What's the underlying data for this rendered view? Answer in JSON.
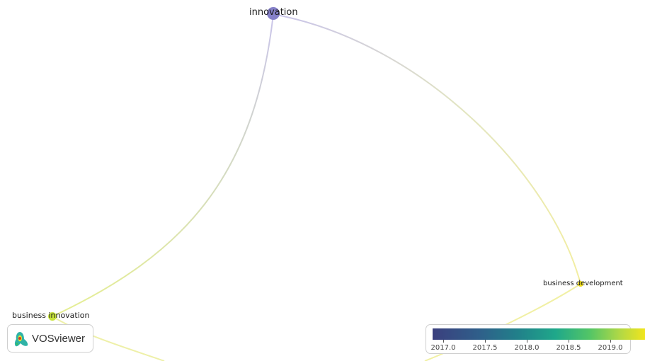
{
  "network": {
    "nodes": [
      {
        "id": "innovation",
        "label": "innovation",
        "year": 2017.1
      },
      {
        "id": "business-innovation",
        "label": "business innovation",
        "year": 2019.0
      },
      {
        "id": "business-development",
        "label": "business development",
        "year": 2019.0
      }
    ],
    "links": [
      {
        "source": "innovation",
        "target": "business-innovation"
      },
      {
        "source": "innovation",
        "target": "business-development"
      },
      {
        "source": "business-innovation",
        "target": "off-screen"
      },
      {
        "source": "business-development",
        "target": "off-screen"
      }
    ]
  },
  "logo": {
    "text": "VOSviewer"
  },
  "legend": {
    "ticks": [
      "2017.0",
      "2017.5",
      "2018.0",
      "2018.5",
      "2019.0"
    ],
    "colors": [
      "#3b3f7e",
      "#21808a",
      "#1fa88a",
      "#53c566",
      "#f1e51d"
    ]
  }
}
